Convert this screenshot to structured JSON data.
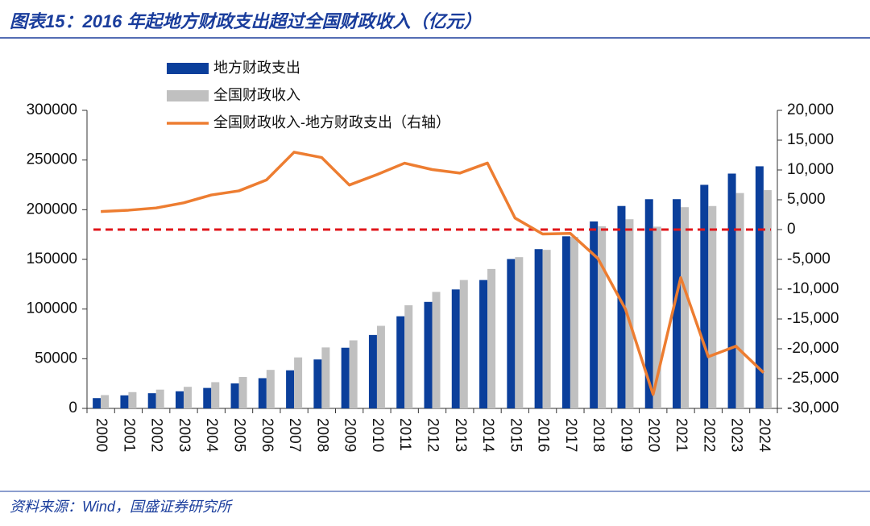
{
  "chart_data": {
    "type": "bar-line",
    "title": "图表15：2016 年起地方财政支出超过全国财政收入（亿元）",
    "source": "资料来源：Wind，国盛证券研究所",
    "categories": [
      "2000",
      "2001",
      "2002",
      "2003",
      "2004",
      "2005",
      "2006",
      "2007",
      "2008",
      "2009",
      "2010",
      "2011",
      "2012",
      "2013",
      "2014",
      "2015",
      "2016",
      "2017",
      "2018",
      "2019",
      "2020",
      "2021",
      "2022",
      "2023",
      "2024"
    ],
    "series": [
      {
        "name": "地方财政支出",
        "type": "bar",
        "color": "#0b3f9b",
        "values": [
          10366,
          13135,
          15281,
          17230,
          20593,
          25154,
          30431,
          38339,
          49248,
          61044,
          73884,
          92734,
          107188,
          119740,
          129215,
          150336,
          160351,
          173228,
          188196,
          203743,
          210583,
          210623,
          225039,
          236353,
          243700
        ]
      },
      {
        "name": "全国财政收入",
        "type": "bar",
        "color": "#c0c0c0",
        "values": [
          13395,
          16386,
          18904,
          21715,
          26396,
          31649,
          38760,
          51322,
          61330,
          68518,
          83102,
          103874,
          117254,
          129210,
          140370,
          152269,
          159605,
          172593,
          183360,
          190390,
          182914,
          202555,
          203703,
          216784,
          219702
        ]
      },
      {
        "name": "全国财政收入-地方财政支出（右轴）",
        "type": "line",
        "axis": "y2",
        "color": "#ed7d31",
        "values": [
          3029,
          3251,
          3623,
          4485,
          5803,
          6495,
          8329,
          12983,
          12082,
          7474,
          9218,
          11140,
          10066,
          9470,
          11155,
          1933,
          -746,
          -635,
          -4836,
          -13353,
          -27669,
          -8068,
          -21336,
          -19569,
          -24000
        ]
      }
    ],
    "ylim": [
      0,
      300000
    ],
    "yticks": [
      0,
      50000,
      100000,
      150000,
      200000,
      250000,
      300000
    ],
    "y2lim": [
      -30000,
      20000
    ],
    "y2ticks": [
      {
        "value": -30000,
        "label": "-30,000"
      },
      {
        "value": -25000,
        "label": "-25,000"
      },
      {
        "value": -20000,
        "label": "-20,000"
      },
      {
        "value": -15000,
        "label": "-15,000"
      },
      {
        "value": -10000,
        "label": "-10,000"
      },
      {
        "value": -5000,
        "label": "-5,000"
      },
      0,
      {
        "value": 5000,
        "label": "5,000"
      },
      {
        "value": 10000,
        "label": "10,000"
      },
      {
        "value": 15000,
        "label": "15,000"
      },
      {
        "value": 20000,
        "label": "20,000"
      }
    ],
    "reference_line": {
      "axis": "y2",
      "value": 0,
      "color": "#e0161b"
    },
    "legend": "top-left"
  }
}
